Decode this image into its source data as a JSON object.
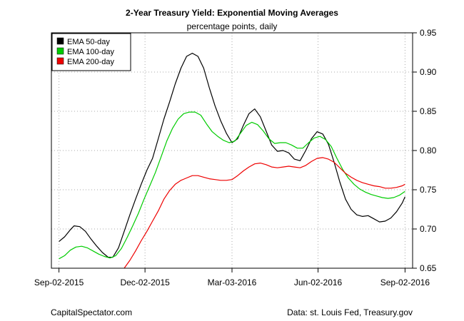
{
  "chart_data": {
    "type": "line",
    "title": "2-Year Treasury Yield: Exponential Moving Averages",
    "subtitle": "percentage points, daily",
    "ylim": [
      0.65,
      0.95
    ],
    "yticks": [
      0.65,
      0.7,
      0.75,
      0.8,
      0.85,
      0.9,
      0.95
    ],
    "ytick_labels": [
      "0.65",
      "0.70",
      "0.75",
      "0.80",
      "0.85",
      "0.90",
      "0.95"
    ],
    "xticks": [
      "2015-09-02",
      "2015-12-02",
      "2016-03-03",
      "2016-06-02",
      "2016-09-02"
    ],
    "xtick_labels": [
      "Sep-02-2015",
      "Dec-02-2015",
      "Mar-03-2016",
      "Jun-02-2016",
      "Sep-02-2016"
    ],
    "xlim": [
      "2015-08-25",
      "2016-09-10"
    ],
    "grid": true,
    "legend_position": "top-left",
    "series": [
      {
        "name": "EMA 50-day",
        "color": "#000000",
        "points": [
          [
            "2015-09-02",
            0.684
          ],
          [
            "2015-09-08",
            0.69
          ],
          [
            "2015-09-14",
            0.699
          ],
          [
            "2015-09-18",
            0.704
          ],
          [
            "2015-09-24",
            0.703
          ],
          [
            "2015-09-30",
            0.697
          ],
          [
            "2015-10-06",
            0.687
          ],
          [
            "2015-10-12",
            0.678
          ],
          [
            "2015-10-18",
            0.67
          ],
          [
            "2015-10-24",
            0.664
          ],
          [
            "2015-10-29",
            0.664
          ],
          [
            "2015-11-04",
            0.676
          ],
          [
            "2015-11-10",
            0.697
          ],
          [
            "2015-11-16",
            0.718
          ],
          [
            "2015-11-22",
            0.738
          ],
          [
            "2015-11-28",
            0.757
          ],
          [
            "2015-12-04",
            0.775
          ],
          [
            "2015-12-10",
            0.79
          ],
          [
            "2015-12-16",
            0.815
          ],
          [
            "2015-12-22",
            0.84
          ],
          [
            "2015-12-28",
            0.862
          ],
          [
            "2016-01-03",
            0.885
          ],
          [
            "2016-01-09",
            0.905
          ],
          [
            "2016-01-15",
            0.92
          ],
          [
            "2016-01-21",
            0.924
          ],
          [
            "2016-01-27",
            0.92
          ],
          [
            "2016-02-02",
            0.905
          ],
          [
            "2016-02-08",
            0.88
          ],
          [
            "2016-02-14",
            0.857
          ],
          [
            "2016-02-20",
            0.838
          ],
          [
            "2016-02-26",
            0.822
          ],
          [
            "2016-03-03",
            0.81
          ],
          [
            "2016-03-09",
            0.815
          ],
          [
            "2016-03-15",
            0.832
          ],
          [
            "2016-03-21",
            0.847
          ],
          [
            "2016-03-27",
            0.853
          ],
          [
            "2016-04-02",
            0.843
          ],
          [
            "2016-04-08",
            0.825
          ],
          [
            "2016-04-14",
            0.807
          ],
          [
            "2016-04-20",
            0.799
          ],
          [
            "2016-04-26",
            0.8
          ],
          [
            "2016-05-02",
            0.797
          ],
          [
            "2016-05-08",
            0.789
          ],
          [
            "2016-05-14",
            0.787
          ],
          [
            "2016-05-20",
            0.8
          ],
          [
            "2016-05-26",
            0.815
          ],
          [
            "2016-06-01",
            0.824
          ],
          [
            "2016-06-07",
            0.821
          ],
          [
            "2016-06-13",
            0.808
          ],
          [
            "2016-06-19",
            0.785
          ],
          [
            "2016-06-25",
            0.76
          ],
          [
            "2016-07-01",
            0.738
          ],
          [
            "2016-07-07",
            0.725
          ],
          [
            "2016-07-13",
            0.718
          ],
          [
            "2016-07-19",
            0.716
          ],
          [
            "2016-07-25",
            0.717
          ],
          [
            "2016-07-31",
            0.713
          ],
          [
            "2016-08-06",
            0.709
          ],
          [
            "2016-08-12",
            0.71
          ],
          [
            "2016-08-18",
            0.714
          ],
          [
            "2016-08-24",
            0.722
          ],
          [
            "2016-08-30",
            0.733
          ],
          [
            "2016-09-02",
            0.741
          ]
        ]
      },
      {
        "name": "EMA 100-day",
        "color": "#00cc00",
        "points": [
          [
            "2015-09-02",
            0.662
          ],
          [
            "2015-09-08",
            0.666
          ],
          [
            "2015-09-14",
            0.673
          ],
          [
            "2015-09-20",
            0.677
          ],
          [
            "2015-09-26",
            0.678
          ],
          [
            "2015-10-02",
            0.676
          ],
          [
            "2015-10-08",
            0.672
          ],
          [
            "2015-10-14",
            0.668
          ],
          [
            "2015-10-20",
            0.665
          ],
          [
            "2015-10-26",
            0.663
          ],
          [
            "2015-11-01",
            0.666
          ],
          [
            "2015-11-07",
            0.675
          ],
          [
            "2015-11-13",
            0.689
          ],
          [
            "2015-11-19",
            0.704
          ],
          [
            "2015-11-25",
            0.72
          ],
          [
            "2015-12-01",
            0.738
          ],
          [
            "2015-12-07",
            0.755
          ],
          [
            "2015-12-13",
            0.772
          ],
          [
            "2015-12-19",
            0.792
          ],
          [
            "2015-12-25",
            0.812
          ],
          [
            "2015-12-31",
            0.828
          ],
          [
            "2016-01-06",
            0.84
          ],
          [
            "2016-01-12",
            0.847
          ],
          [
            "2016-01-18",
            0.849
          ],
          [
            "2016-01-24",
            0.849
          ],
          [
            "2016-01-30",
            0.845
          ],
          [
            "2016-02-05",
            0.834
          ],
          [
            "2016-02-11",
            0.824
          ],
          [
            "2016-02-17",
            0.818
          ],
          [
            "2016-02-23",
            0.813
          ],
          [
            "2016-02-29",
            0.81
          ],
          [
            "2016-03-06",
            0.812
          ],
          [
            "2016-03-12",
            0.822
          ],
          [
            "2016-03-18",
            0.832
          ],
          [
            "2016-03-24",
            0.836
          ],
          [
            "2016-03-30",
            0.833
          ],
          [
            "2016-04-05",
            0.825
          ],
          [
            "2016-04-11",
            0.815
          ],
          [
            "2016-04-17",
            0.809
          ],
          [
            "2016-04-23",
            0.81
          ],
          [
            "2016-04-29",
            0.81
          ],
          [
            "2016-05-05",
            0.807
          ],
          [
            "2016-05-11",
            0.803
          ],
          [
            "2016-05-17",
            0.803
          ],
          [
            "2016-05-23",
            0.81
          ],
          [
            "2016-05-29",
            0.816
          ],
          [
            "2016-06-04",
            0.818
          ],
          [
            "2016-06-10",
            0.814
          ],
          [
            "2016-06-16",
            0.805
          ],
          [
            "2016-06-22",
            0.79
          ],
          [
            "2016-06-28",
            0.776
          ],
          [
            "2016-07-04",
            0.765
          ],
          [
            "2016-07-10",
            0.757
          ],
          [
            "2016-07-16",
            0.751
          ],
          [
            "2016-07-22",
            0.747
          ],
          [
            "2016-07-28",
            0.744
          ],
          [
            "2016-08-03",
            0.742
          ],
          [
            "2016-08-09",
            0.74
          ],
          [
            "2016-08-15",
            0.739
          ],
          [
            "2016-08-21",
            0.74
          ],
          [
            "2016-08-27",
            0.743
          ],
          [
            "2016-09-02",
            0.748
          ]
        ]
      },
      {
        "name": "EMA 200-day",
        "color": "#ee0000",
        "points": [
          [
            "2015-11-10",
            0.65
          ],
          [
            "2015-11-16",
            0.66
          ],
          [
            "2015-11-22",
            0.672
          ],
          [
            "2015-11-28",
            0.685
          ],
          [
            "2015-12-04",
            0.697
          ],
          [
            "2015-12-10",
            0.71
          ],
          [
            "2015-12-16",
            0.723
          ],
          [
            "2015-12-22",
            0.738
          ],
          [
            "2015-12-28",
            0.749
          ],
          [
            "2016-01-03",
            0.757
          ],
          [
            "2016-01-09",
            0.762
          ],
          [
            "2016-01-15",
            0.765
          ],
          [
            "2016-01-21",
            0.768
          ],
          [
            "2016-01-27",
            0.768
          ],
          [
            "2016-02-02",
            0.766
          ],
          [
            "2016-02-08",
            0.764
          ],
          [
            "2016-02-14",
            0.763
          ],
          [
            "2016-02-20",
            0.762
          ],
          [
            "2016-02-26",
            0.762
          ],
          [
            "2016-03-03",
            0.763
          ],
          [
            "2016-03-09",
            0.768
          ],
          [
            "2016-03-15",
            0.774
          ],
          [
            "2016-03-21",
            0.779
          ],
          [
            "2016-03-27",
            0.783
          ],
          [
            "2016-04-02",
            0.784
          ],
          [
            "2016-04-08",
            0.782
          ],
          [
            "2016-04-14",
            0.779
          ],
          [
            "2016-04-20",
            0.778
          ],
          [
            "2016-04-26",
            0.779
          ],
          [
            "2016-05-02",
            0.78
          ],
          [
            "2016-05-08",
            0.779
          ],
          [
            "2016-05-14",
            0.778
          ],
          [
            "2016-05-20",
            0.781
          ],
          [
            "2016-05-26",
            0.786
          ],
          [
            "2016-06-01",
            0.79
          ],
          [
            "2016-06-07",
            0.791
          ],
          [
            "2016-06-13",
            0.789
          ],
          [
            "2016-06-19",
            0.785
          ],
          [
            "2016-06-25",
            0.778
          ],
          [
            "2016-07-01",
            0.771
          ],
          [
            "2016-07-07",
            0.766
          ],
          [
            "2016-07-13",
            0.762
          ],
          [
            "2016-07-19",
            0.759
          ],
          [
            "2016-07-25",
            0.757
          ],
          [
            "2016-07-31",
            0.755
          ],
          [
            "2016-08-06",
            0.754
          ],
          [
            "2016-08-12",
            0.752
          ],
          [
            "2016-08-18",
            0.752
          ],
          [
            "2016-08-24",
            0.753
          ],
          [
            "2016-08-30",
            0.755
          ],
          [
            "2016-09-02",
            0.757
          ]
        ]
      }
    ]
  },
  "footer": {
    "left": "CapitalSpectator.com",
    "right": "Data: st. Louis Fed, Treasury.gov"
  }
}
